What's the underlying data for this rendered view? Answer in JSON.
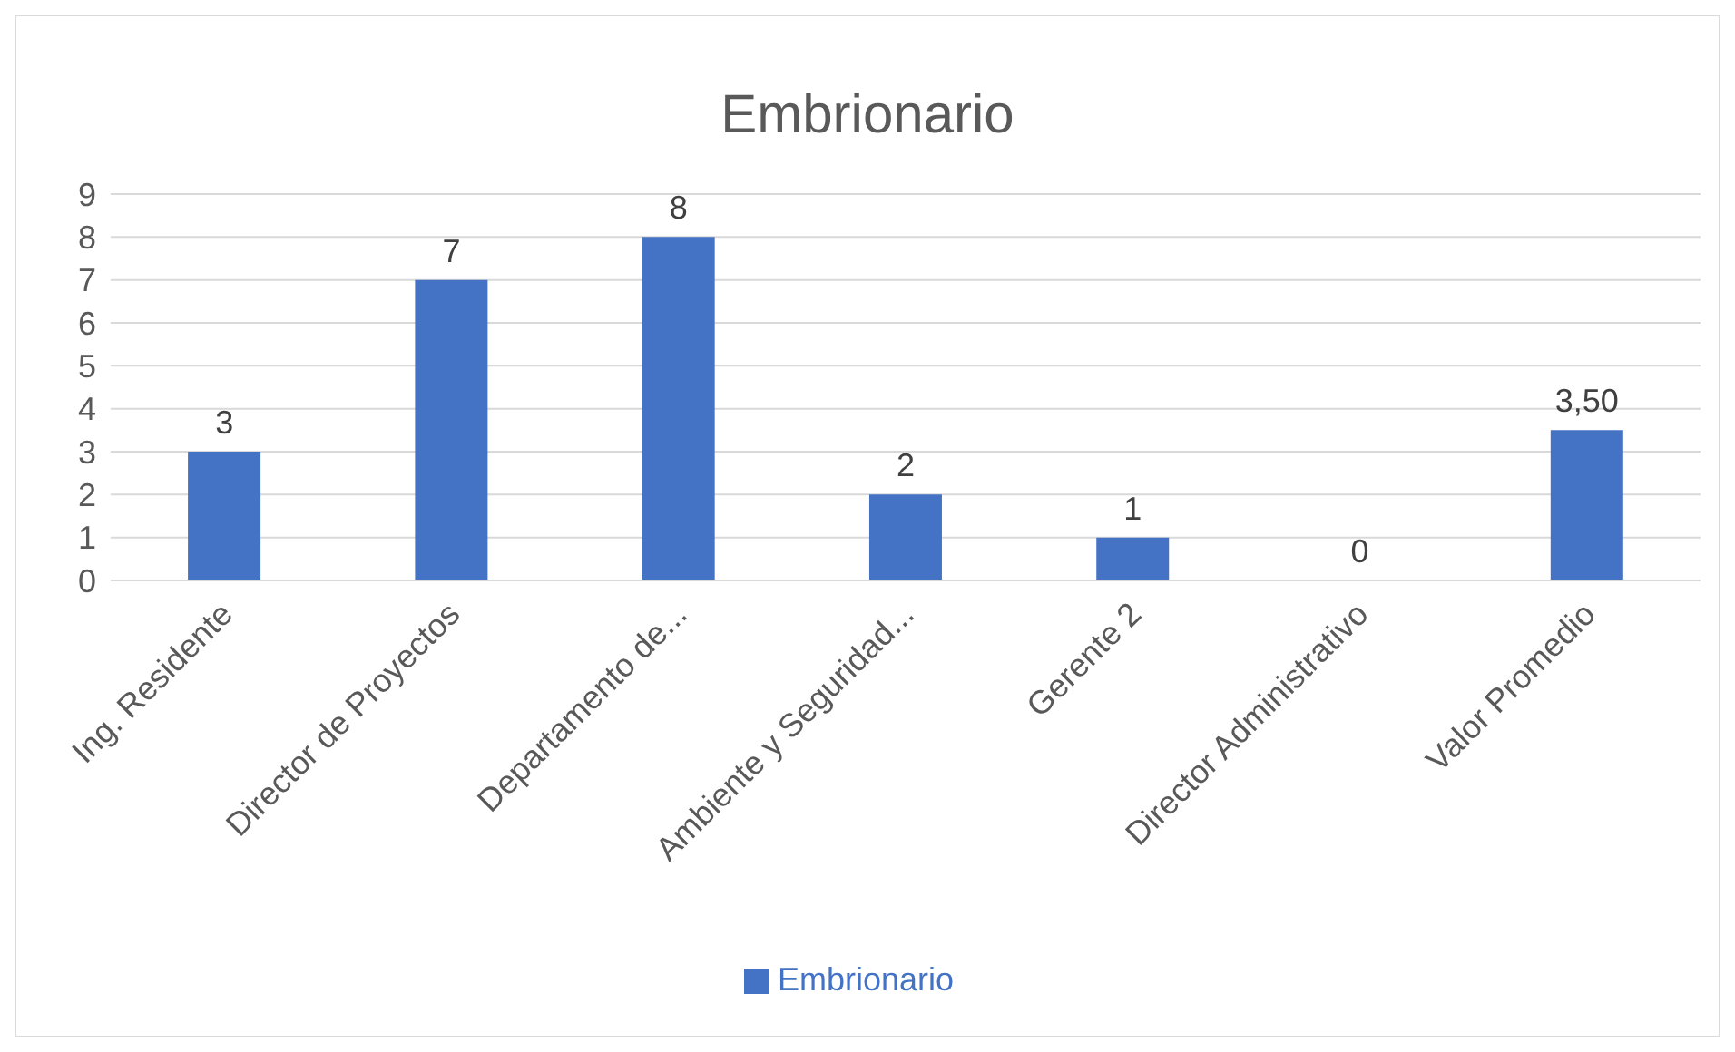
{
  "chart_data": {
    "type": "bar",
    "title": "Embrionario",
    "categories": [
      "Ing. Residente",
      "Director de Proyectos",
      "Departamento de...",
      "Ambiente y Seguridad...",
      "Gerente 2",
      "Director Administrativo",
      "Valor Promedio"
    ],
    "series": [
      {
        "name": "Embrionario",
        "color": "#4472c4",
        "values": [
          3,
          7,
          8,
          2,
          1,
          0,
          3.5
        ]
      }
    ],
    "value_labels": [
      "3",
      "7",
      "8",
      "2",
      "1",
      "0",
      "3,50"
    ],
    "ylim": [
      0,
      9
    ],
    "yticks": [
      0,
      1,
      2,
      3,
      4,
      5,
      6,
      7,
      8,
      9
    ],
    "grid": "y",
    "legend": "bottom"
  }
}
